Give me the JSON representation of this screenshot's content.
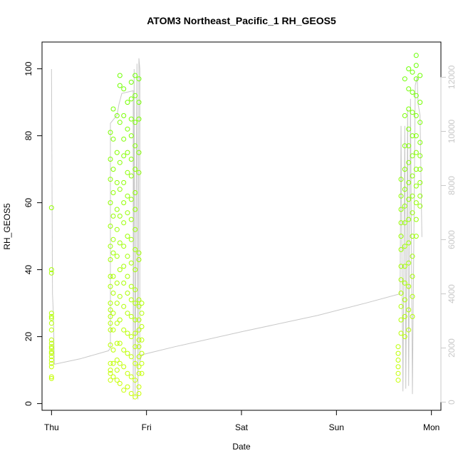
{
  "chart_data": {
    "type": "scatter",
    "title": "ATOM3 Northeast_Pacific_1 RH_GEOS5",
    "xlabel": "Date",
    "ylabel": "RH_GEOS5",
    "x_ticks": [
      "Thu",
      "Fri",
      "Sat",
      "Sun",
      "Mon"
    ],
    "x_range_days": [
      -0.1,
      4.1
    ],
    "y_ticks": [
      0,
      20,
      40,
      60,
      80,
      100
    ],
    "ylim": [
      -2,
      108
    ],
    "y2_ticks": [
      0,
      2000,
      4000,
      6000,
      8000,
      10000,
      12000
    ],
    "y2lim": [
      -300,
      13300
    ],
    "colors": {
      "axis": "#000000",
      "right_axis": "#c8c8c8",
      "altitude_line": "#c8c8c8",
      "points_low": "#ccff00",
      "points_high": "#66ff00"
    },
    "series": [
      {
        "values": [
          [
            0.0,
            58.5
          ],
          [
            0.0,
            40.0
          ],
          [
            0.0,
            39.0
          ],
          [
            0.0,
            27.0
          ],
          [
            0.0,
            26.0
          ],
          [
            0.0,
            25.5
          ],
          [
            0.0,
            24.0
          ],
          [
            0.0,
            22.0
          ],
          [
            0.0,
            19.0
          ],
          [
            0.0,
            18.0
          ],
          [
            0.0,
            17.0
          ],
          [
            0.0,
            16.5
          ],
          [
            0.0,
            15.5
          ],
          [
            0.0,
            15.0
          ],
          [
            0.0,
            14.0
          ],
          [
            0.0,
            13.0
          ],
          [
            0.0,
            12.0
          ],
          [
            0.0,
            11.0
          ],
          [
            0.0,
            8.0
          ],
          [
            0.0,
            7.5
          ],
          [
            0.62,
            81.0
          ],
          [
            0.62,
            73.0
          ],
          [
            0.62,
            67.0
          ],
          [
            0.62,
            60.0
          ],
          [
            0.62,
            53.0
          ],
          [
            0.62,
            47.0
          ],
          [
            0.62,
            43.0
          ],
          [
            0.62,
            38.0
          ],
          [
            0.62,
            35.0
          ],
          [
            0.62,
            30.0
          ],
          [
            0.62,
            28.0
          ],
          [
            0.62,
            26.0
          ],
          [
            0.62,
            24.0
          ],
          [
            0.62,
            22.0
          ],
          [
            0.62,
            17.5
          ],
          [
            0.62,
            12.0
          ],
          [
            0.62,
            10.0
          ],
          [
            0.62,
            9.0
          ],
          [
            0.62,
            7.0
          ],
          [
            0.65,
            88.0
          ],
          [
            0.65,
            79.0
          ],
          [
            0.65,
            70.0
          ],
          [
            0.65,
            63.0
          ],
          [
            0.65,
            56.0
          ],
          [
            0.65,
            49.0
          ],
          [
            0.65,
            45.0
          ],
          [
            0.65,
            38.0
          ],
          [
            0.65,
            33.0
          ],
          [
            0.65,
            27.0
          ],
          [
            0.65,
            22.0
          ],
          [
            0.65,
            16.0
          ],
          [
            0.65,
            12.0
          ],
          [
            0.65,
            8.0
          ],
          [
            0.69,
            86.0
          ],
          [
            0.69,
            75.0
          ],
          [
            0.69,
            66.0
          ],
          [
            0.69,
            58.0
          ],
          [
            0.69,
            52.0
          ],
          [
            0.69,
            44.0
          ],
          [
            0.69,
            36.0
          ],
          [
            0.69,
            30.0
          ],
          [
            0.69,
            24.0
          ],
          [
            0.69,
            18.0
          ],
          [
            0.69,
            13.0
          ],
          [
            0.69,
            10.0
          ],
          [
            0.69,
            7.0
          ],
          [
            0.72,
            98.0
          ],
          [
            0.72,
            95.0
          ],
          [
            0.72,
            84.0
          ],
          [
            0.72,
            72.0
          ],
          [
            0.72,
            64.0
          ],
          [
            0.72,
            56.0
          ],
          [
            0.72,
            48.0
          ],
          [
            0.72,
            40.0
          ],
          [
            0.72,
            32.0
          ],
          [
            0.72,
            25.0
          ],
          [
            0.72,
            18.0
          ],
          [
            0.72,
            12.0
          ],
          [
            0.72,
            6.0
          ],
          [
            0.76,
            94.0
          ],
          [
            0.76,
            86.0
          ],
          [
            0.76,
            79.0
          ],
          [
            0.76,
            74.0
          ],
          [
            0.76,
            66.0
          ],
          [
            0.76,
            60.0
          ],
          [
            0.76,
            54.0
          ],
          [
            0.76,
            47.0
          ],
          [
            0.76,
            41.0
          ],
          [
            0.76,
            36.0
          ],
          [
            0.76,
            29.0
          ],
          [
            0.76,
            22.0
          ],
          [
            0.76,
            16.0
          ],
          [
            0.76,
            11.0
          ],
          [
            0.76,
            4.0
          ],
          [
            0.8,
            90.0
          ],
          [
            0.8,
            82.0
          ],
          [
            0.8,
            75.0
          ],
          [
            0.8,
            69.0
          ],
          [
            0.8,
            62.0
          ],
          [
            0.8,
            57.0
          ],
          [
            0.8,
            50.0
          ],
          [
            0.8,
            44.0
          ],
          [
            0.8,
            38.0
          ],
          [
            0.8,
            33.0
          ],
          [
            0.8,
            27.0
          ],
          [
            0.8,
            21.0
          ],
          [
            0.8,
            15.0
          ],
          [
            0.8,
            9.0
          ],
          [
            0.8,
            5.0
          ],
          [
            0.84,
            96.0
          ],
          [
            0.84,
            91.0
          ],
          [
            0.84,
            85.0
          ],
          [
            0.84,
            80.0
          ],
          [
            0.84,
            73.0
          ],
          [
            0.84,
            68.0
          ],
          [
            0.84,
            61.0
          ],
          [
            0.84,
            55.0
          ],
          [
            0.84,
            49.0
          ],
          [
            0.84,
            42.0
          ],
          [
            0.84,
            35.0
          ],
          [
            0.84,
            31.0
          ],
          [
            0.84,
            26.0
          ],
          [
            0.84,
            20.0
          ],
          [
            0.84,
            14.0
          ],
          [
            0.84,
            8.0
          ],
          [
            0.84,
            3.0
          ],
          [
            0.88,
            98.0
          ],
          [
            0.88,
            92.0
          ],
          [
            0.88,
            84.0
          ],
          [
            0.88,
            77.0
          ],
          [
            0.88,
            70.0
          ],
          [
            0.88,
            63.0
          ],
          [
            0.88,
            58.0
          ],
          [
            0.88,
            52.0
          ],
          [
            0.88,
            46.0
          ],
          [
            0.88,
            40.0
          ],
          [
            0.88,
            34.0
          ],
          [
            0.88,
            30.0
          ],
          [
            0.88,
            25.0
          ],
          [
            0.88,
            21.0
          ],
          [
            0.88,
            17.0
          ],
          [
            0.88,
            12.0
          ],
          [
            0.88,
            7.0
          ],
          [
            0.88,
            2.0
          ],
          [
            0.92,
            97.0
          ],
          [
            0.92,
            90.0
          ],
          [
            0.92,
            85.0
          ],
          [
            0.92,
            75.0
          ],
          [
            0.92,
            69.0
          ],
          [
            0.92,
            45.0
          ],
          [
            0.92,
            43.0
          ],
          [
            0.92,
            31.0
          ],
          [
            0.92,
            29.0
          ],
          [
            0.92,
            25.0
          ],
          [
            0.92,
            22.0
          ],
          [
            0.92,
            19.0
          ],
          [
            0.92,
            17.0
          ],
          [
            0.92,
            14.0
          ],
          [
            0.92,
            11.0
          ],
          [
            0.92,
            9.0
          ],
          [
            0.92,
            5.0
          ],
          [
            0.92,
            3.0
          ],
          [
            0.95,
            30.0
          ],
          [
            0.95,
            27.0
          ],
          [
            0.95,
            23.0
          ],
          [
            0.95,
            19.0
          ],
          [
            0.95,
            15.0
          ],
          [
            0.95,
            12.0
          ],
          [
            0.95,
            9.0
          ],
          [
            3.65,
            17.0
          ],
          [
            3.65,
            15.0
          ],
          [
            3.65,
            13.0
          ],
          [
            3.65,
            11.0
          ],
          [
            3.65,
            9.0
          ],
          [
            3.65,
            7.0
          ],
          [
            3.68,
            67.0
          ],
          [
            3.68,
            62.0
          ],
          [
            3.68,
            58.0
          ],
          [
            3.68,
            54.0
          ],
          [
            3.68,
            50.0
          ],
          [
            3.68,
            46.0
          ],
          [
            3.68,
            41.0
          ],
          [
            3.68,
            37.0
          ],
          [
            3.68,
            33.0
          ],
          [
            3.68,
            29.0
          ],
          [
            3.68,
            25.0
          ],
          [
            3.68,
            21.0
          ]
        ]
      },
      {
        "values": [
          [
            3.72,
            97.0
          ],
          [
            3.72,
            86.0
          ],
          [
            3.72,
            77.0
          ],
          [
            3.72,
            70.0
          ],
          [
            3.72,
            64.0
          ],
          [
            3.72,
            59.0
          ],
          [
            3.72,
            54.0
          ],
          [
            3.72,
            47.0
          ],
          [
            3.72,
            41.0
          ],
          [
            3.72,
            36.0
          ],
          [
            3.72,
            31.0
          ],
          [
            3.72,
            26.0
          ],
          [
            3.72,
            20.0
          ],
          [
            3.76,
            100.0
          ],
          [
            3.76,
            94.0
          ],
          [
            3.76,
            88.0
          ],
          [
            3.76,
            82.0
          ],
          [
            3.76,
            77.0
          ],
          [
            3.76,
            72.0
          ],
          [
            3.76,
            66.0
          ],
          [
            3.76,
            61.0
          ],
          [
            3.76,
            55.0
          ],
          [
            3.76,
            48.0
          ],
          [
            3.76,
            42.0
          ],
          [
            3.76,
            35.0
          ],
          [
            3.76,
            28.0
          ],
          [
            3.76,
            22.0
          ],
          [
            3.8,
            99.0
          ],
          [
            3.8,
            93.0
          ],
          [
            3.8,
            87.0
          ],
          [
            3.8,
            80.0
          ],
          [
            3.8,
            74.0
          ],
          [
            3.8,
            68.0
          ],
          [
            3.8,
            62.0
          ],
          [
            3.8,
            57.0
          ],
          [
            3.8,
            50.0
          ],
          [
            3.8,
            44.0
          ],
          [
            3.8,
            38.0
          ],
          [
            3.8,
            32.0
          ],
          [
            3.8,
            26.0
          ],
          [
            3.84,
            104.0
          ],
          [
            3.84,
            101.0
          ],
          [
            3.84,
            97.0
          ],
          [
            3.84,
            92.0
          ],
          [
            3.84,
            86.0
          ],
          [
            3.84,
            80.0
          ],
          [
            3.84,
            75.0
          ],
          [
            3.84,
            70.0
          ],
          [
            3.84,
            65.0
          ],
          [
            3.84,
            60.0
          ],
          [
            3.84,
            55.0
          ],
          [
            3.84,
            50.0
          ],
          [
            3.88,
            98.0
          ],
          [
            3.88,
            90.0
          ],
          [
            3.88,
            84.0
          ],
          [
            3.88,
            78.0
          ],
          [
            3.88,
            74.0
          ],
          [
            3.88,
            70.0
          ],
          [
            3.88,
            66.0
          ],
          [
            3.88,
            62.0
          ],
          [
            3.88,
            59.0
          ]
        ]
      }
    ],
    "secondary_line": {
      "axis": "right",
      "points": [
        [
          0.0,
          12300
        ],
        [
          0.0,
          12250
        ],
        [
          0.01,
          4000
        ],
        [
          0.02,
          3200
        ],
        [
          0.03,
          1400
        ],
        [
          0.3,
          1600
        ],
        [
          0.6,
          1900
        ],
        [
          0.62,
          2000
        ],
        [
          0.62,
          10300
        ],
        [
          0.69,
          10600
        ],
        [
          0.71,
          11000
        ],
        [
          0.74,
          11400
        ],
        [
          0.86,
          11500
        ],
        [
          0.86,
          100
        ],
        [
          0.87,
          12300
        ],
        [
          0.88,
          200
        ],
        [
          0.9,
          12500
        ],
        [
          0.91,
          100
        ],
        [
          0.92,
          12700
        ],
        [
          0.93,
          12300
        ],
        [
          0.93,
          1500
        ],
        [
          0.95,
          1750
        ],
        [
          1.3,
          2050
        ],
        [
          2.0,
          2600
        ],
        [
          2.8,
          3200
        ],
        [
          3.3,
          3650
        ],
        [
          3.67,
          4000
        ],
        [
          3.68,
          10200
        ],
        [
          3.7,
          400
        ],
        [
          3.72,
          10200
        ],
        [
          3.73,
          500
        ],
        [
          3.75,
          10800
        ],
        [
          3.76,
          600
        ],
        [
          3.78,
          11200
        ],
        [
          3.8,
          300
        ],
        [
          3.83,
          11700
        ],
        [
          3.85,
          12000
        ],
        [
          3.86,
          11000
        ],
        [
          3.88,
          10600
        ],
        [
          3.9,
          6100
        ]
      ]
    }
  }
}
